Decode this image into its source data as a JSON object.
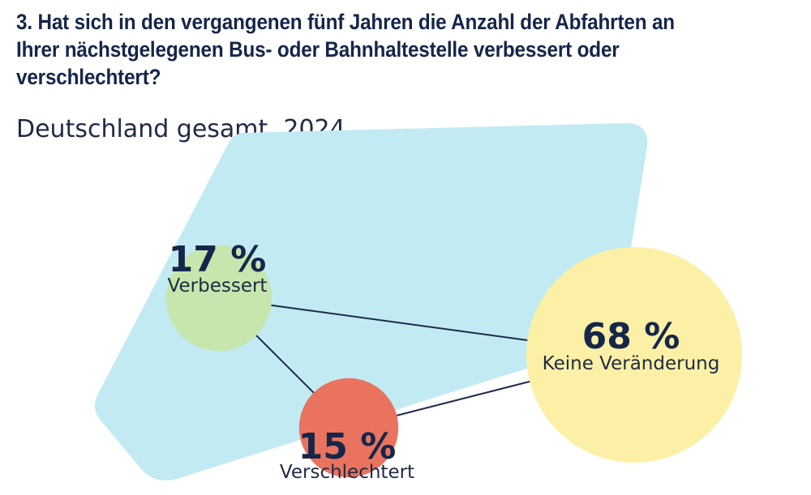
{
  "title": "3. Hat sich in den vergangenen fünf Jahren die Anzahl der Abfahrten an Ihrer nächstgelegenen Bus- oder Bahnhaltestelle verbessert oder verschlechtert?",
  "title_lines": [
    "3. Hat sich in den vergangenen fünf Jahren die Anzahl der Abfahrten an",
    "Ihrer nächstgelegenen Bus- oder Bahnhaltestelle verbessert oder",
    "verschlechtert?"
  ],
  "subtitle": "Deutschland gesamt, 2024",
  "colors": {
    "background_shape": "#c2eaf2",
    "verbessert": "#c6e6ad",
    "verschlechtert": "#e9735f",
    "keine_veraenderung": "#fbf0a5",
    "lines": "#1c2a4a",
    "text": "#15264a"
  },
  "chart_data": {
    "type": "bubble",
    "unit": "%",
    "categories": [
      "Verbessert",
      "Verschlechtert",
      "Keine Veränderung"
    ],
    "values": [
      17,
      15,
      68
    ],
    "value_labels": [
      "17 %",
      "15 %",
      "68 %"
    ]
  }
}
